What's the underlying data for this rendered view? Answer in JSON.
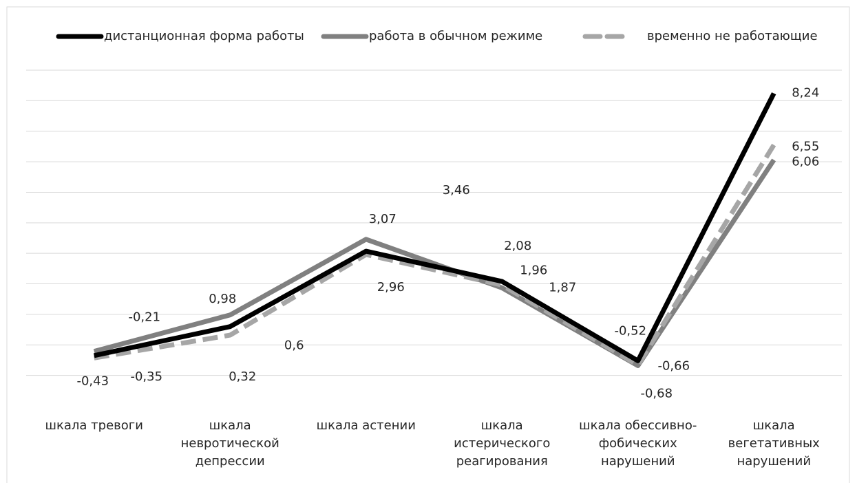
{
  "chart_data": {
    "type": "line",
    "categories": [
      "шкала тревоги",
      "шкала невротической депрессии",
      "шкала астении",
      "шкала истерического реагирования",
      "шкала обессивно-фобических нарушений",
      "шкала вегетативных нарушений"
    ],
    "series": [
      {
        "name": "дистанционная форма работы",
        "color": "#000000",
        "values": [
          -0.35,
          0.6,
          3.07,
          2.08,
          -0.52,
          8.24
        ],
        "value_labels": [
          "-0,35",
          "0,6",
          "3,07",
          "2,08",
          "-0,52",
          "8,24"
        ]
      },
      {
        "name": "работа в обычном режиме",
        "color": "#808080",
        "values": [
          -0.21,
          0.98,
          3.46,
          1.87,
          -0.68,
          6.06
        ],
        "value_labels": [
          "-0,21",
          "0,98",
          "3,46",
          "1,87",
          "-0,68",
          "6,06"
        ]
      },
      {
        "name": "временно не работающие",
        "color": "#a6a6a6",
        "dashed": true,
        "values": [
          -0.43,
          0.32,
          2.96,
          1.96,
          -0.66,
          6.55
        ],
        "value_labels": [
          "-0,43",
          "0,32",
          "2,96",
          "1,96",
          "-0,66",
          "6,55"
        ]
      }
    ],
    "ylim": [
      -2,
      9
    ],
    "yticks": [
      -1,
      0,
      1,
      2,
      3,
      4,
      5,
      6,
      7,
      8,
      9
    ],
    "grid": true,
    "legend": "top"
  }
}
